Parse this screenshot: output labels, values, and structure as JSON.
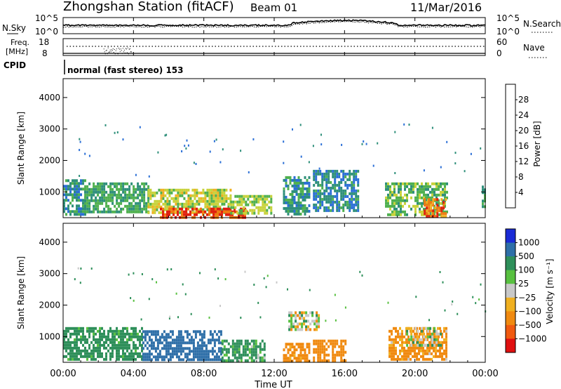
{
  "header": {
    "station": "Zhongshan Station (fitACF)",
    "beam": "Beam 01",
    "date": "11/Mar/2016"
  },
  "top_panels": {
    "nsky_label": "N.Sky",
    "nsky_ticks": [
      "10^5",
      "10^0"
    ],
    "nsearch_label": "N.Search",
    "nsearch_ticks": [
      "10^5",
      "10^0"
    ],
    "freq_label_1": "Freq.",
    "freq_label_2": "[MHz]",
    "freq_ticks": [
      "18",
      "8"
    ],
    "nave_label": "Nave",
    "nave_ticks": [
      "60",
      "0"
    ],
    "cpid_label": "CPID",
    "cpid_text": "normal (fast stereo) 153"
  },
  "chart_data": [
    {
      "type": "heatmap",
      "quantity": "power",
      "ylabel": "Slant Range [km]",
      "ylim": [
        180,
        4600
      ],
      "yticks": [
        1000,
        2000,
        3000,
        4000
      ],
      "xlim_hours": [
        0,
        24
      ],
      "colorbar": {
        "label": "Power [dB]",
        "ticks": [
          "4",
          "8",
          "12",
          "16",
          "20",
          "24",
          "28"
        ],
        "colors": [
          "#1a1aff",
          "#2b6fd6",
          "#2e8f7a",
          "#4fb04f",
          "#c8d23a",
          "#f0b020",
          "#f07a10",
          "#e02010"
        ]
      },
      "regions": [
        {
          "t0": 0.0,
          "t1": 1.2,
          "r0": 250,
          "r1": 1400,
          "dB": 10
        },
        {
          "t0": 1.2,
          "t1": 4.8,
          "r0": 350,
          "r1": 1300,
          "dB": 12
        },
        {
          "t0": 4.8,
          "t1": 9.5,
          "r0": 300,
          "r1": 1100,
          "dB": 18
        },
        {
          "t0": 5.5,
          "t1": 10.5,
          "r0": 200,
          "r1": 500,
          "dB": 28
        },
        {
          "t0": 9.5,
          "t1": 11.8,
          "r0": 300,
          "r1": 900,
          "dB": 16
        },
        {
          "t0": 12.5,
          "t1": 14.0,
          "r0": 300,
          "r1": 1500,
          "dB": 10
        },
        {
          "t0": 14.2,
          "t1": 16.8,
          "r0": 400,
          "r1": 1700,
          "dB": 9
        },
        {
          "t0": 18.3,
          "t1": 21.8,
          "r0": 300,
          "r1": 1300,
          "dB": 14
        },
        {
          "t0": 20.5,
          "t1": 21.8,
          "r0": 200,
          "r1": 800,
          "dB": 26
        },
        {
          "t0": 23.8,
          "t1": 24.0,
          "r0": 500,
          "r1": 1200,
          "dB": 12
        }
      ]
    },
    {
      "type": "heatmap",
      "quantity": "velocity",
      "ylabel": "Slant Range [km]",
      "ylim": [
        180,
        4600
      ],
      "yticks": [
        1000,
        2000,
        3000,
        4000
      ],
      "xlim_hours": [
        0,
        24
      ],
      "colorbar": {
        "label": "Velocity [m s⁻¹]",
        "ticks": [
          "1000",
          "500",
          "100",
          "25",
          "−25",
          "−100",
          "−500",
          "−1000"
        ],
        "colors": [
          "#1a2bd6",
          "#2e6fa8",
          "#2e8f5a",
          "#58c040",
          "#c8c8c8",
          "#f0b020",
          "#f08a10",
          "#f05a10",
          "#e01010"
        ]
      },
      "regions": [
        {
          "t0": 0.0,
          "t1": 4.5,
          "r0": 250,
          "r1": 1300,
          "v": 150
        },
        {
          "t0": 4.5,
          "t1": 9.0,
          "r0": 300,
          "r1": 1200,
          "v": 600
        },
        {
          "t0": 9.0,
          "t1": 11.5,
          "r0": 250,
          "r1": 900,
          "v": 120
        },
        {
          "t0": 12.5,
          "t1": 14.0,
          "r0": 200,
          "r1": 800,
          "v": -150
        },
        {
          "t0": 14.2,
          "t1": 16.0,
          "r0": 250,
          "r1": 900,
          "v": -200
        },
        {
          "t0": 12.8,
          "t1": 14.5,
          "r0": 1200,
          "r1": 1800,
          "v": 0
        },
        {
          "t0": 18.5,
          "t1": 21.8,
          "r0": 250,
          "r1": 1300,
          "v": -120
        },
        {
          "t0": 19.5,
          "t1": 21.5,
          "r0": 700,
          "r1": 1300,
          "v": 0
        }
      ]
    }
  ],
  "xaxis": {
    "ticks": [
      "00:00",
      "04:00",
      "08:00",
      "12:00",
      "16:00",
      "20:00",
      "00:00"
    ],
    "label": "Time UT"
  }
}
